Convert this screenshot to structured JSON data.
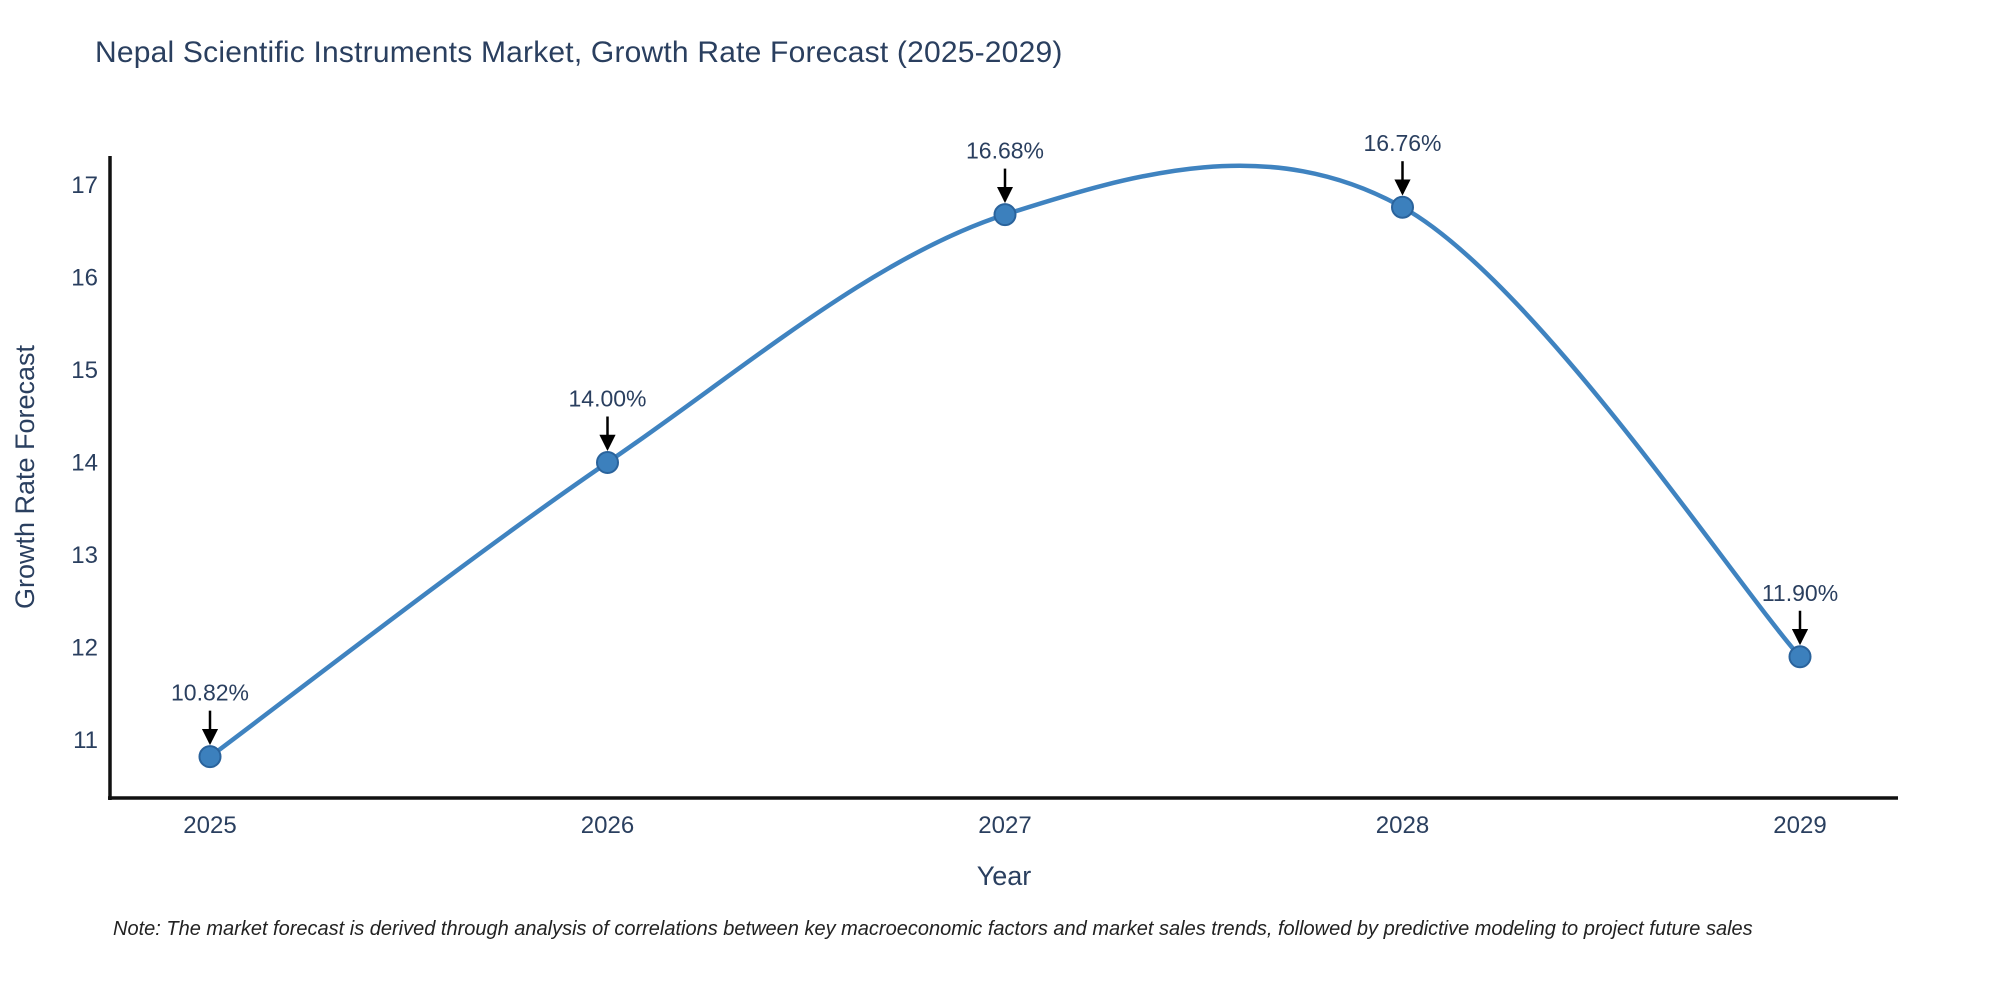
{
  "title": "Nepal Scientific Instruments Market, Growth Rate Forecast (2025-2029)",
  "note": "Note: The market forecast is derived through analysis of correlations between key macroeconomic factors and market sales trends, followed by predictive modeling to project future sales",
  "colors": {
    "line": "#3f83c0",
    "marker_fill": "#3c80bd",
    "marker_edge": "#2a639c",
    "text": "#2a3f5f",
    "axis_line": "#111111",
    "arrow": "#000000",
    "note_text": "#222222"
  },
  "chart_data": {
    "type": "line",
    "line_shape": "spline",
    "markers": true,
    "title": "Nepal Scientific Instruments Market, Growth Rate Forecast (2025-2029)",
    "xlabel": "Year",
    "ylabel": "Growth Rate Forecast",
    "x": [
      2025,
      2026,
      2027,
      2028,
      2029
    ],
    "values": [
      10.82,
      14.0,
      16.68,
      16.76,
      11.9
    ],
    "point_labels": [
      "10.82%",
      "14.00%",
      "16.68%",
      "16.76%",
      "11.90%"
    ],
    "xticks": [
      "2025",
      "2026",
      "2027",
      "2028",
      "2029"
    ],
    "yticks": [
      11,
      12,
      13,
      14,
      15,
      16,
      17
    ],
    "ylim": [
      10.37,
      17.33
    ],
    "xlim": [
      2024.75,
      2029.25
    ],
    "grid": false,
    "legend": false,
    "annotation_arrows": "down"
  }
}
